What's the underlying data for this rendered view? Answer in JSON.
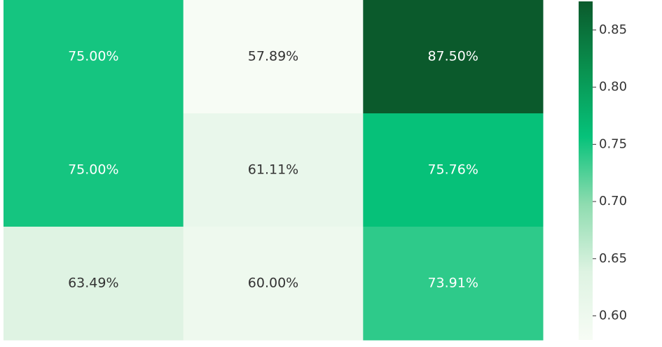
{
  "chart_data": {
    "type": "heatmap",
    "values": [
      [
        0.75,
        0.5789,
        0.875
      ],
      [
        0.75,
        0.6111,
        0.7576
      ],
      [
        0.6349,
        0.6,
        0.7391
      ]
    ],
    "value_labels": [
      [
        "75.00%",
        "57.89%",
        "87.50%"
      ],
      [
        "75.00%",
        "61.11%",
        "75.76%"
      ],
      [
        "63.49%",
        "60.00%",
        "73.91%"
      ]
    ],
    "colormap": [
      "#f7fcf5",
      "#def3e2",
      "#8fdcb0",
      "#06c27a",
      "#09914f",
      "#0b5a2c"
    ],
    "ylim": [
      0.5789,
      0.875
    ],
    "yticks": [
      {
        "value": 0.6,
        "label": "0.60"
      },
      {
        "value": 0.65,
        "label": "0.65"
      },
      {
        "value": 0.7,
        "label": "0.70"
      },
      {
        "value": 0.75,
        "label": "0.75"
      },
      {
        "value": 0.8,
        "label": "0.80"
      },
      {
        "value": 0.85,
        "label": "0.85"
      }
    ]
  }
}
